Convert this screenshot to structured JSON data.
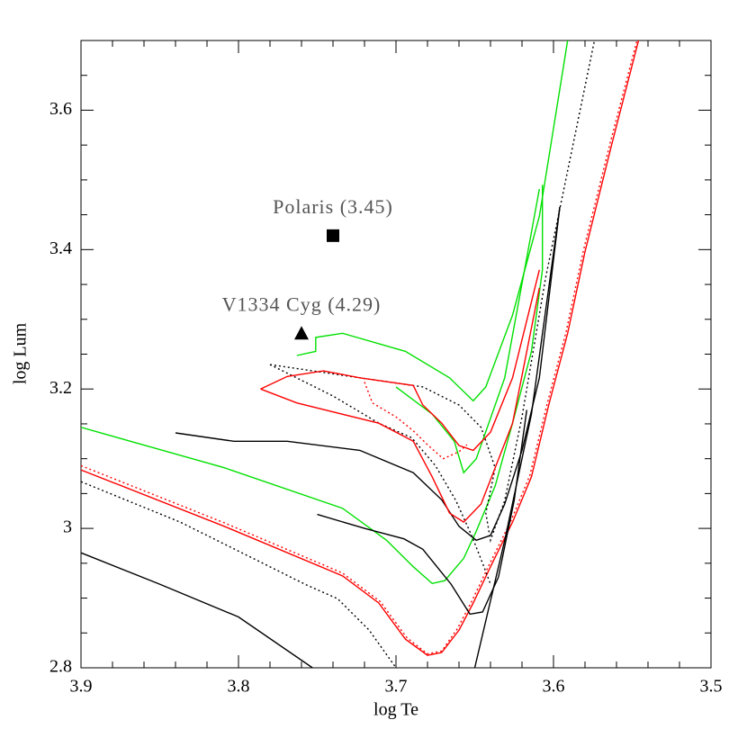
{
  "chart_data": {
    "type": "line",
    "xlabel": "log Te",
    "ylabel": "log Lum",
    "xlim": [
      3.9,
      3.5
    ],
    "ylim": [
      2.8,
      3.7
    ],
    "xticks": [
      3.9,
      3.8,
      3.7,
      3.6,
      3.5
    ],
    "yticks": [
      2.8,
      3,
      3.2,
      3.4,
      3.6
    ],
    "xminorticks": [
      3.88,
      3.86,
      3.84,
      3.82,
      3.78,
      3.76,
      3.74,
      3.72,
      3.68,
      3.66,
      3.64,
      3.62,
      3.58,
      3.56,
      3.54,
      3.52
    ],
    "yminorticks": [
      2.85,
      2.9,
      2.95,
      3.05,
      3.1,
      3.15,
      3.25,
      3.3,
      3.35,
      3.45,
      3.5,
      3.55,
      3.65,
      3.7
    ],
    "series": [
      {
        "color": "#000000",
        "style": "solid",
        "x": [
          3.9,
          3.85,
          3.8,
          3.753
        ],
        "y": [
          2.965,
          2.92,
          2.873,
          2.8
        ]
      },
      {
        "color": "#000000",
        "style": "dotted",
        "x": [
          3.9,
          3.837,
          3.757,
          3.737,
          3.717,
          3.7
        ],
        "y": [
          3.067,
          3.009,
          2.919,
          2.899,
          2.854,
          2.8
        ]
      },
      {
        "color": "#ff0000",
        "style": "dotted",
        "x": [
          3.9,
          3.809,
          3.734,
          3.71,
          3.693,
          3.68,
          3.671,
          3.661,
          3.652,
          3.641,
          3.627,
          3.615,
          3.604,
          3.592,
          3.581,
          3.564,
          3.547
        ],
        "y": [
          3.09,
          3.008,
          2.936,
          2.895,
          2.843,
          2.82,
          2.824,
          2.856,
          2.895,
          2.947,
          3.011,
          3.076,
          3.179,
          3.282,
          3.399,
          3.553,
          3.7
        ]
      },
      {
        "color": "#ff0000",
        "style": "solid",
        "x": [
          3.9,
          3.809,
          3.734,
          3.711,
          3.694,
          3.68,
          3.671,
          3.66,
          3.651,
          3.64,
          3.626,
          3.614,
          3.603,
          3.591,
          3.58,
          3.563,
          3.546
        ],
        "y": [
          3.084,
          3.003,
          2.932,
          2.893,
          2.841,
          2.818,
          2.822,
          2.854,
          2.893,
          2.945,
          3.009,
          3.074,
          3.177,
          3.28,
          3.397,
          3.551,
          3.7
        ]
      },
      {
        "color": "#00e000",
        "style": "solid",
        "x": [
          3.9,
          3.809,
          3.734,
          3.706,
          3.689,
          3.677,
          3.669,
          3.657,
          3.649,
          3.637,
          3.626,
          3.614,
          3.607,
          3.607
        ],
        "y": [
          3.145,
          3.087,
          3.029,
          2.983,
          2.945,
          2.921,
          2.925,
          2.957,
          2.996,
          3.061,
          3.151,
          3.254,
          3.371,
          3.493
        ]
      },
      {
        "color": "#000000",
        "style": "solid",
        "x": [
          3.75,
          3.72,
          3.695,
          3.683,
          3.665,
          3.653,
          3.645,
          3.635,
          3.625,
          3.617
        ],
        "y": [
          3.02,
          3.0,
          2.985,
          2.97,
          2.92,
          2.877,
          2.88,
          2.93,
          3.04,
          3.17
        ]
      },
      {
        "color": "#000000",
        "style": "solid",
        "x": [
          3.84,
          3.803,
          3.769,
          3.723,
          3.689,
          3.671,
          3.66,
          3.649,
          3.64,
          3.631,
          3.62,
          3.609,
          3.596
        ],
        "y": [
          3.137,
          3.125,
          3.125,
          3.112,
          3.08,
          3.041,
          3.003,
          2.983,
          2.99,
          3.035,
          3.112,
          3.216,
          3.461
        ]
      },
      {
        "color": "#000000",
        "style": "solid",
        "x": [
          3.65,
          3.631,
          3.614,
          3.596
        ],
        "y": [
          2.8,
          2.983,
          3.164,
          3.461
        ]
      },
      {
        "color": "#000000",
        "style": "dotted",
        "x": [
          3.78,
          3.723,
          3.683,
          3.66,
          3.646,
          3.637,
          3.643,
          3.64,
          3.631,
          3.62,
          3.605,
          3.574
        ],
        "y": [
          3.235,
          3.216,
          3.203,
          3.177,
          3.145,
          3.087,
          3.022,
          2.983,
          3.04,
          3.16,
          3.36,
          3.7
        ]
      },
      {
        "color": "#000000",
        "style": "dotted",
        "x": [
          3.78,
          3.74,
          3.711,
          3.69,
          3.675,
          3.662,
          3.652,
          3.645,
          3.64
        ],
        "y": [
          3.235,
          3.19,
          3.151,
          3.13,
          3.09,
          3.04,
          2.99,
          2.95,
          2.92
        ]
      },
      {
        "color": "#00e000",
        "style": "solid",
        "x": [
          3.7,
          3.677,
          3.663,
          3.657,
          3.649,
          3.631,
          3.609
        ],
        "y": [
          3.203,
          3.164,
          3.125,
          3.08,
          3.1,
          3.216,
          3.487
        ]
      },
      {
        "color": "#00e000",
        "style": "solid",
        "x": [
          3.763,
          3.751,
          3.751,
          3.734,
          3.694,
          3.666,
          3.651,
          3.643,
          3.626,
          3.609,
          3.591
        ],
        "y": [
          3.248,
          3.254,
          3.274,
          3.28,
          3.254,
          3.216,
          3.183,
          3.203,
          3.306,
          3.448,
          3.7
        ]
      },
      {
        "color": "#ff0000",
        "style": "dotted",
        "x": [
          3.72,
          3.715,
          3.7,
          3.689,
          3.68,
          3.67,
          3.66,
          3.655
        ],
        "y": [
          3.21,
          3.18,
          3.16,
          3.14,
          3.12,
          3.1,
          3.11,
          3.12
        ]
      },
      {
        "color": "#ff0000",
        "style": "solid",
        "x": [
          3.786,
          3.769,
          3.746,
          3.723,
          3.689,
          3.683,
          3.671,
          3.66,
          3.651,
          3.64,
          3.626,
          3.609
        ],
        "y": [
          3.2,
          3.218,
          3.226,
          3.216,
          3.205,
          3.177,
          3.151,
          3.119,
          3.112,
          3.138,
          3.216,
          3.371
        ]
      },
      {
        "color": "#ff0000",
        "style": "solid",
        "x": [
          3.786,
          3.763,
          3.711,
          3.689,
          3.677,
          3.666,
          3.657,
          3.646,
          3.626,
          3.609
        ],
        "y": [
          3.2,
          3.18,
          3.151,
          3.125,
          3.074,
          3.022,
          3.009,
          3.035,
          3.151,
          3.345
        ]
      }
    ],
    "points": [
      {
        "label": "Polaris (3.45)",
        "x": 3.74,
        "y": 3.42,
        "marker": "square",
        "color": "#000000"
      },
      {
        "label": "V1334 Cyg (4.29)",
        "x": 3.76,
        "y": 3.28,
        "marker": "triangle",
        "color": "#000000"
      }
    ]
  }
}
